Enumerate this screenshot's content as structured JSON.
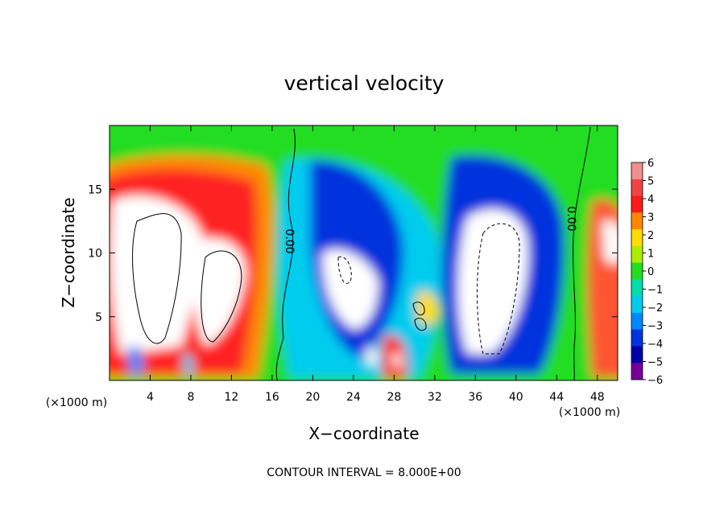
{
  "chart_data": {
    "type": "heatmap",
    "title": "vertical velocity",
    "xlabel": "X−coordinate",
    "ylabel": "Z−coordinate",
    "x_unit_label": "(×1000 m)",
    "xlim": [
      0,
      50
    ],
    "ylim": [
      0,
      20
    ],
    "x_ticks": [
      "4",
      "8",
      "12",
      "16",
      "20",
      "24",
      "28",
      "32",
      "36",
      "40",
      "44",
      "48"
    ],
    "x_tick_values": [
      4,
      8,
      12,
      16,
      20,
      24,
      28,
      32,
      36,
      40,
      44,
      48
    ],
    "y_ticks": [
      "5",
      "10",
      "15"
    ],
    "y_tick_values": [
      5,
      10,
      15
    ],
    "colorbar": {
      "labels": [
        "6",
        "5",
        "4",
        "3",
        "2",
        "1",
        "0",
        "−1",
        "−2",
        "−3",
        "−4",
        "−5",
        "−6"
      ],
      "values": [
        6,
        5,
        4,
        3,
        2,
        1,
        0,
        -1,
        -2,
        -3,
        -4,
        -5,
        -6
      ],
      "colors": [
        "#f08f8f",
        "#ee4444",
        "#ff1a1a",
        "#ff8800",
        "#ffdd00",
        "#aaee00",
        "#22dd22",
        "#00ddaa",
        "#00ccee",
        "#0088ff",
        "#0033dd",
        "#0000aa",
        "#770099"
      ]
    },
    "contour_label": "0.00",
    "contour_interval_text": "CONTOUR INTERVAL = 8.000E+00",
    "features": [
      {
        "sign": "positive",
        "x": 5,
        "z": 9,
        "peak": 7
      },
      {
        "sign": "positive",
        "x": 10,
        "z": 8,
        "peak": 6
      },
      {
        "sign": "positive",
        "x": 28,
        "z": 2,
        "peak": 6
      },
      {
        "sign": "positive",
        "x": 30.5,
        "z": 5,
        "peak": 3
      },
      {
        "sign": "positive",
        "x": 49.5,
        "z": 10,
        "peak": 6
      },
      {
        "sign": "negative",
        "x": 22,
        "z": 9,
        "peak": -7
      },
      {
        "sign": "negative",
        "x": 38,
        "z": 8,
        "peak": -8
      },
      {
        "sign": "negative",
        "x": 3,
        "z": 1,
        "peak": -4
      }
    ]
  }
}
